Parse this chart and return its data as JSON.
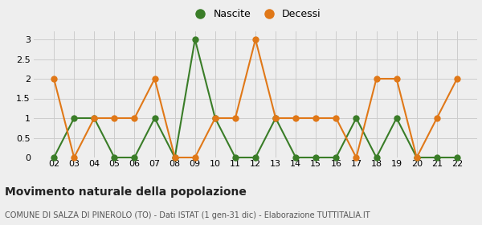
{
  "years": [
    "02",
    "03",
    "04",
    "05",
    "06",
    "07",
    "08",
    "09",
    "10",
    "11",
    "12",
    "13",
    "14",
    "15",
    "16",
    "17",
    "18",
    "19",
    "20",
    "21",
    "22"
  ],
  "nascite": [
    0,
    1,
    1,
    0,
    0,
    1,
    0,
    3,
    1,
    0,
    0,
    1,
    0,
    0,
    0,
    1,
    0,
    1,
    0,
    0,
    0
  ],
  "decessi": [
    2,
    0,
    1,
    1,
    1,
    2,
    0,
    0,
    1,
    1,
    3,
    1,
    1,
    1,
    1,
    0,
    2,
    2,
    0,
    1,
    2
  ],
  "nascite_color": "#3a7d28",
  "decessi_color": "#e07818",
  "title": "Movimento naturale della popolazione",
  "subtitle": "COMUNE DI SALZA DI PINEROLO (TO) - Dati ISTAT (1 gen-31 dic) - Elaborazione TUTTITALIA.IT",
  "legend_nascite": "Nascite",
  "legend_decessi": "Decessi",
  "ylim_min": 0,
  "ylim_max": 3.2,
  "yticks": [
    0,
    0.5,
    1.0,
    1.5,
    2.0,
    2.5,
    3.0
  ],
  "bg_color": "#eeeeee",
  "grid_color": "#cccccc",
  "marker_size": 6,
  "linewidth": 1.5,
  "title_fontsize": 10,
  "subtitle_fontsize": 7,
  "tick_fontsize": 8,
  "legend_fontsize": 9
}
